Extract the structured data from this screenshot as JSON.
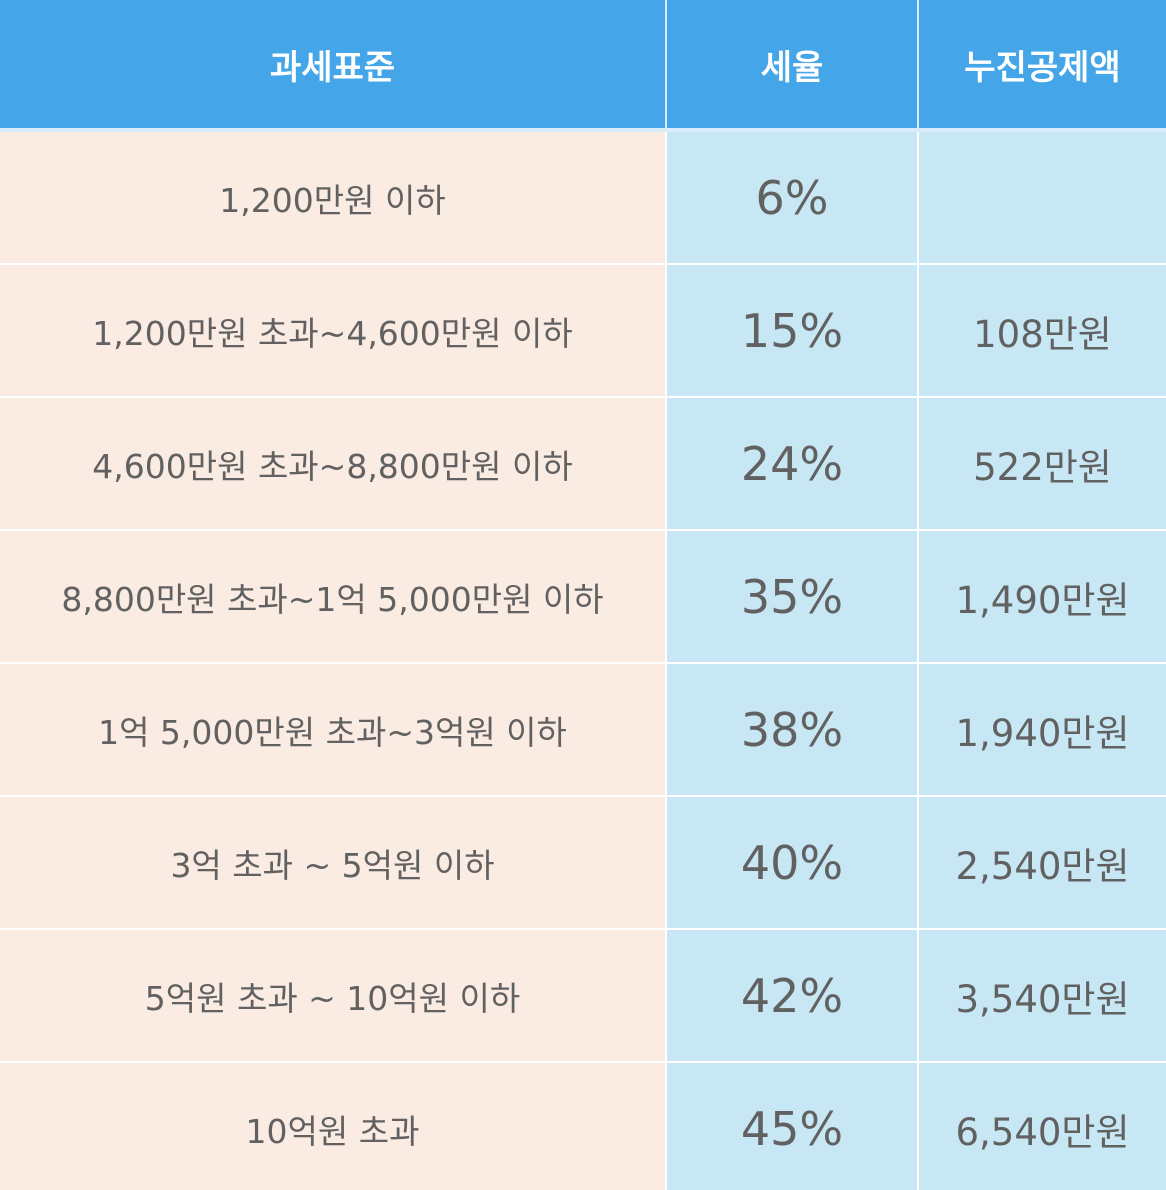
{
  "header": {
    "bracket": "과세표준",
    "rate": "세율",
    "deduction": "누진공제액"
  },
  "rows": [
    {
      "bracket": "1,200만원 이하",
      "rate": "6%",
      "deduction": ""
    },
    {
      "bracket": "1,200만원 초과~4,600만원 이하",
      "rate": "15%",
      "deduction": "108만원"
    },
    {
      "bracket": "4,600만원 초과~8,800만원 이하",
      "rate": "24%",
      "deduction": "522만원"
    },
    {
      "bracket": "8,800만원 초과~1억 5,000만원 이하",
      "rate": "35%",
      "deduction": "1,490만원"
    },
    {
      "bracket": "1억 5,000만원 초과~3억원 이하",
      "rate": "38%",
      "deduction": "1,940만원"
    },
    {
      "bracket": "3억 초과 ~ 5억원 이하",
      "rate": "40%",
      "deduction": "2,540만원"
    },
    {
      "bracket": "5억원 초과 ~ 10억원 이하",
      "rate": "42%",
      "deduction": "3,540만원"
    },
    {
      "bracket": "10억원 초과",
      "rate": "45%",
      "deduction": "6,540만원"
    }
  ],
  "colors": {
    "header_bg": "#44a6e8",
    "bracket_bg": "#faebe3",
    "value_bg": "#c8e7f4",
    "text": "#616161"
  }
}
